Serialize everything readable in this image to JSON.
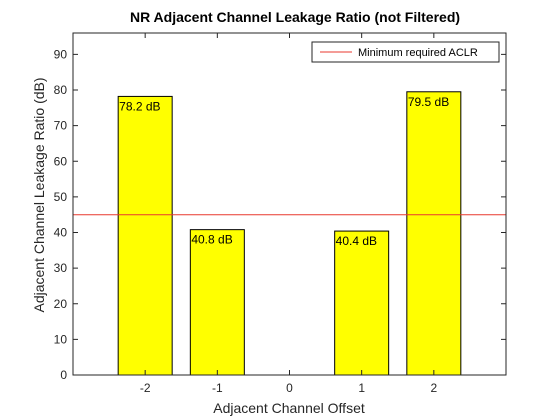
{
  "chart_data": {
    "type": "bar",
    "title": "NR Adjacent Channel Leakage Ratio (not Filtered)",
    "xlabel": "Adjacent Channel Offset",
    "ylabel": "Adjacent Channel Leakage Ratio (dB)",
    "categories": [
      "-2",
      "-1",
      "0",
      "1",
      "2"
    ],
    "x": [
      -2,
      -1,
      0,
      1,
      2
    ],
    "values": [
      78.2,
      40.8,
      0,
      40.4,
      79.5
    ],
    "data_labels": [
      "78.2 dB",
      "40.8 dB",
      "",
      "40.4 dB",
      "79.5 dB"
    ],
    "xlim": [
      -3,
      3
    ],
    "ylim": [
      0,
      96
    ],
    "yticks": [
      0,
      10,
      20,
      30,
      40,
      50,
      60,
      70,
      80,
      90
    ],
    "bar_color": "#ffff00",
    "bar_edge_color": "#000000",
    "reference_line": {
      "name": "Minimum required ACLR",
      "value": 45,
      "color": "#e8392f"
    },
    "legend": {
      "position": "top-right",
      "entries": [
        "Minimum required ACLR"
      ]
    },
    "grid": false
  }
}
